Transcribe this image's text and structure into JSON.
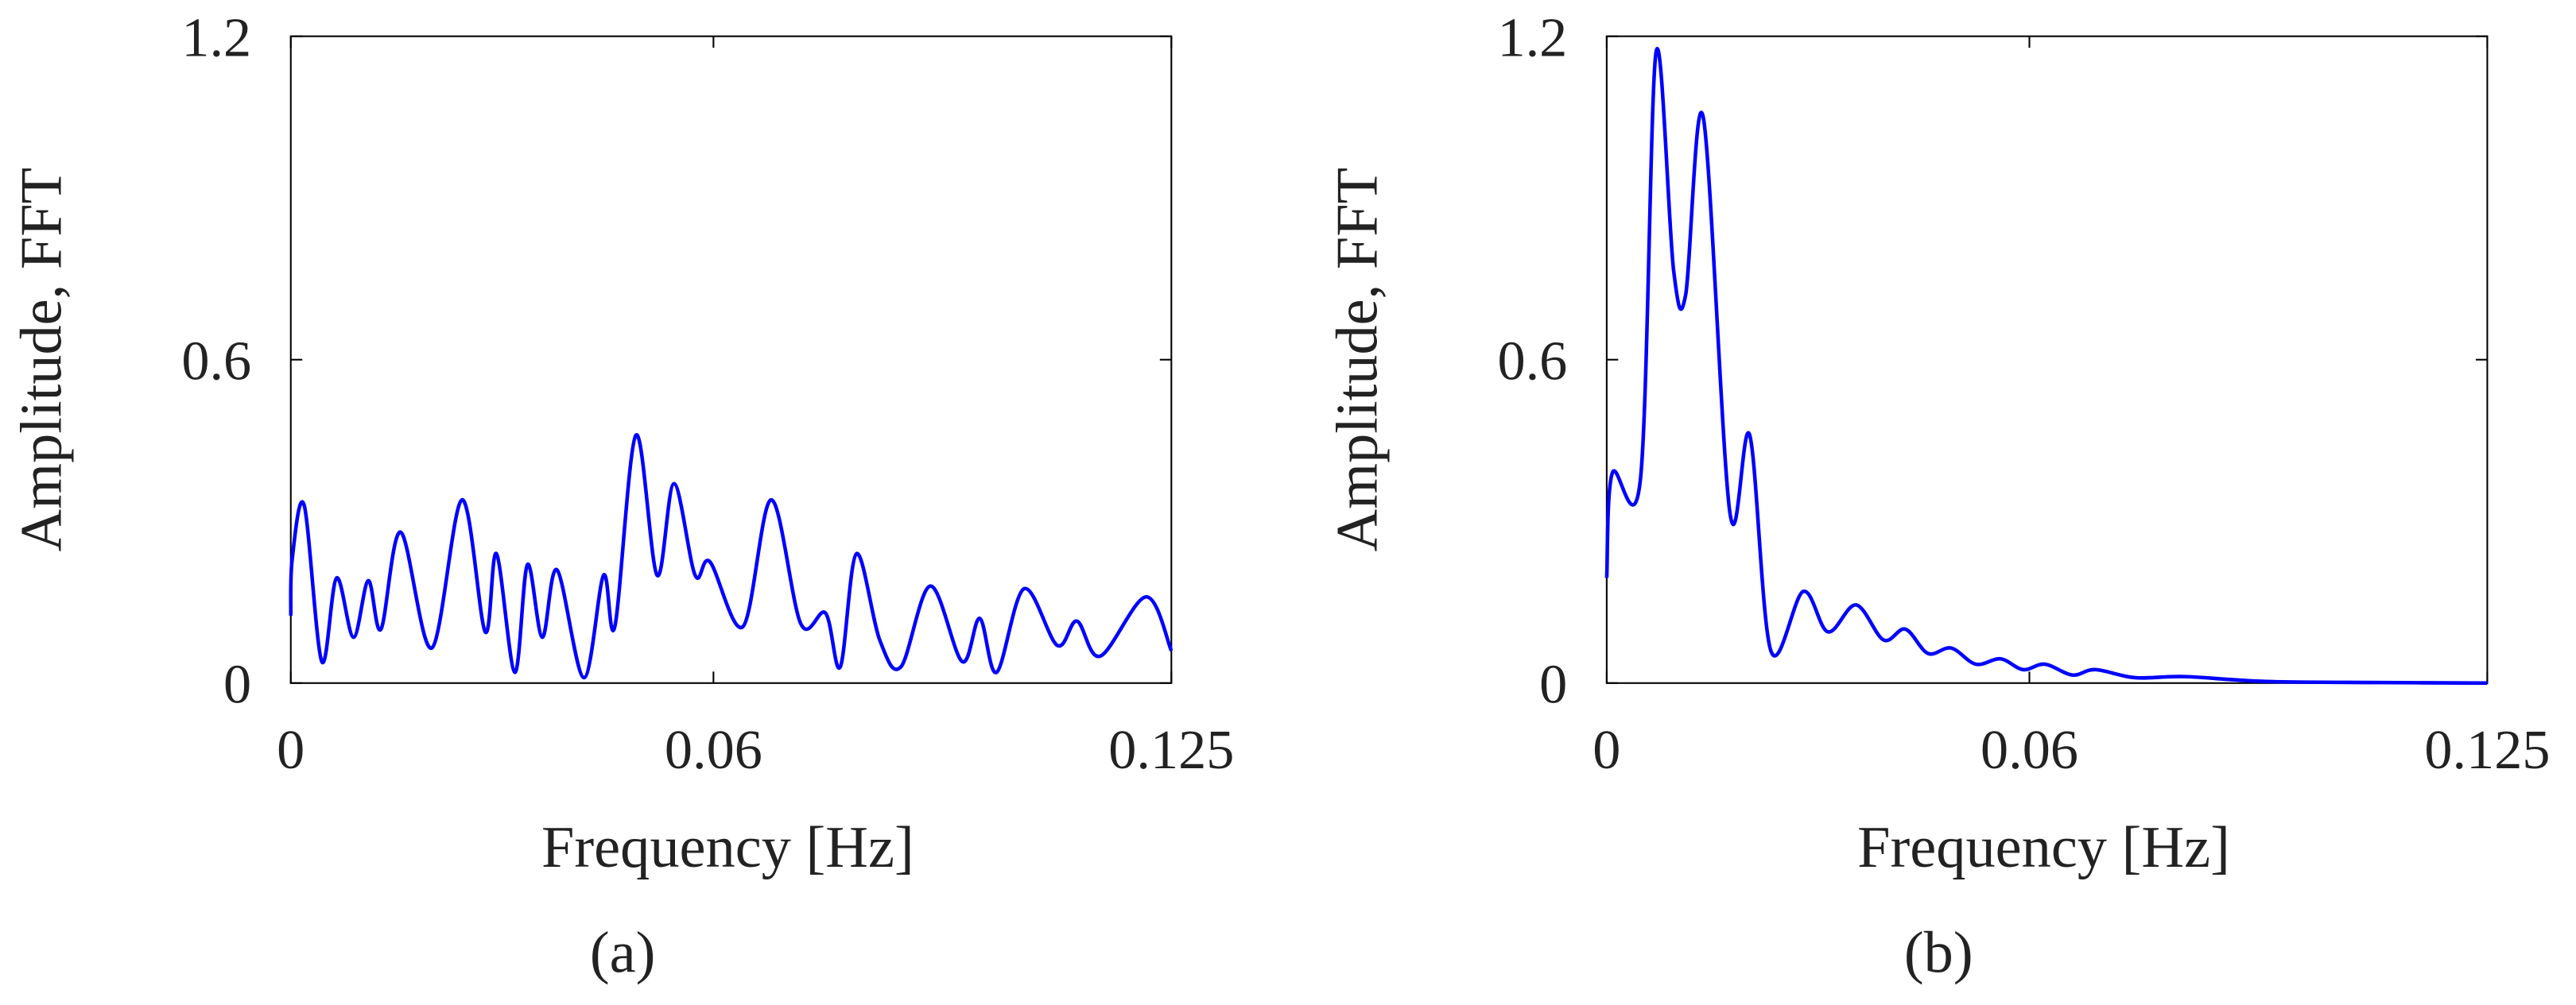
{
  "chart_data": [
    {
      "type": "line",
      "x_label": "Frequency [Hz]",
      "y_label": "Amplitude, FFT",
      "caption": "(a)",
      "xlim": [
        0,
        0.125
      ],
      "ylim": [
        0,
        1.2
      ],
      "xticks": [
        0,
        0.06,
        0.125
      ],
      "yticks": [
        0,
        0.6,
        1.2
      ],
      "grid": false,
      "x": [
        0,
        0.0002,
        0.0019,
        0.0044,
        0.0065,
        0.0089,
        0.011,
        0.0128,
        0.0156,
        0.02,
        0.0243,
        0.0276,
        0.0292,
        0.0318,
        0.0336,
        0.0357,
        0.0378,
        0.0416,
        0.0444,
        0.046,
        0.049,
        0.052,
        0.0544,
        0.0574,
        0.0595,
        0.0642,
        0.0682,
        0.0724,
        0.0759,
        0.078,
        0.0803,
        0.0836,
        0.0866,
        0.0908,
        0.0953,
        0.0978,
        0.1002,
        0.1041,
        0.1088,
        0.1116,
        0.1149,
        0.1214,
        0.125
      ],
      "series": [
        {
          "color": "#0000ff",
          "values": [
            0.125,
            0.23,
            0.33,
            0.04,
            0.195,
            0.085,
            0.19,
            0.1,
            0.28,
            0.065,
            0.34,
            0.095,
            0.24,
            0.02,
            0.22,
            0.085,
            0.21,
            0.01,
            0.2,
            0.105,
            0.46,
            0.2,
            0.37,
            0.2,
            0.225,
            0.105,
            0.34,
            0.11,
            0.13,
            0.03,
            0.24,
            0.08,
            0.03,
            0.18,
            0.04,
            0.12,
            0.02,
            0.175,
            0.07,
            0.115,
            0.05,
            0.16,
            0.06
          ]
        }
      ]
    },
    {
      "type": "line",
      "x_label": "Frequency [Hz]",
      "y_label": "Amplitude, FFT",
      "caption": "(b)",
      "xlim": [
        0,
        0.125
      ],
      "ylim": [
        0,
        1.2
      ],
      "xticks": [
        0,
        0.06,
        0.125
      ],
      "yticks": [
        0,
        0.6,
        1.2
      ],
      "grid": false,
      "x": [
        0,
        0.0008,
        0.0048,
        0.007,
        0.0095,
        0.0112,
        0.0137,
        0.0175,
        0.0203,
        0.0233,
        0.0279,
        0.0314,
        0.0354,
        0.0393,
        0.0424,
        0.0456,
        0.0489,
        0.0524,
        0.0559,
        0.0591,
        0.0622,
        0.0661,
        0.0694,
        0.075,
        0.082,
        0.0936,
        0.11,
        0.125
      ],
      "series": [
        {
          "color": "#0000ff",
          "values": [
            0.195,
            0.39,
            0.38,
            1.17,
            0.765,
            0.72,
            1.05,
            0.315,
            0.46,
            0.06,
            0.17,
            0.095,
            0.145,
            0.08,
            0.1,
            0.055,
            0.065,
            0.035,
            0.045,
            0.025,
            0.035,
            0.015,
            0.025,
            0.01,
            0.012,
            0.003,
            0.001,
            0
          ]
        }
      ]
    }
  ]
}
